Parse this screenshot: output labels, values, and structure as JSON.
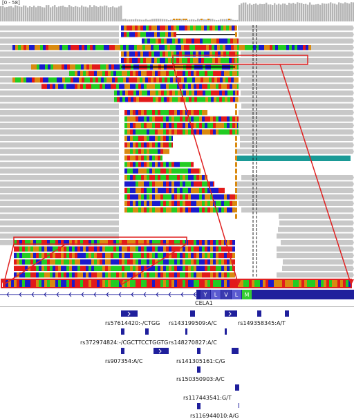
{
  "coverage": {
    "range_label": "[0 - 58]"
  },
  "gene": {
    "name": "CELA1",
    "amino_acids": [
      "Y",
      "L",
      "V",
      "L",
      "M"
    ]
  },
  "variants": [
    {
      "id": "rs57614420",
      "label": "rs57614420:-/CTGG"
    },
    {
      "id": "rs143199509",
      "label": "rs143199509:A/C"
    },
    {
      "id": "rs149358345",
      "label": "rs149358345:A/T"
    },
    {
      "id": "rs372974824",
      "label": "rs372974824:-/CGCTTCCTGGTG"
    },
    {
      "id": "rs148270827",
      "label": "rs148270827:A/C"
    },
    {
      "id": "rs907354",
      "label": "rs907354:A/C"
    },
    {
      "id": "rs141305161",
      "label": "rs141305161:C/G"
    },
    {
      "id": "rs150350903",
      "label": "rs150350903:A/C"
    },
    {
      "id": "rs117443541",
      "label": "rs117443541:G/T"
    },
    {
      "id": "rs116944010",
      "label": "rs116944010:A/G"
    }
  ],
  "colors": {
    "read_gray": "#c8c8c8",
    "base_A": "#22cc22",
    "base_C": "#1a1acc",
    "base_G": "#d98a10",
    "base_T": "#e21a1a",
    "gene_blue": "#1f1f9c",
    "highlight_red": "#e02020",
    "teal": "#1a9a96"
  }
}
